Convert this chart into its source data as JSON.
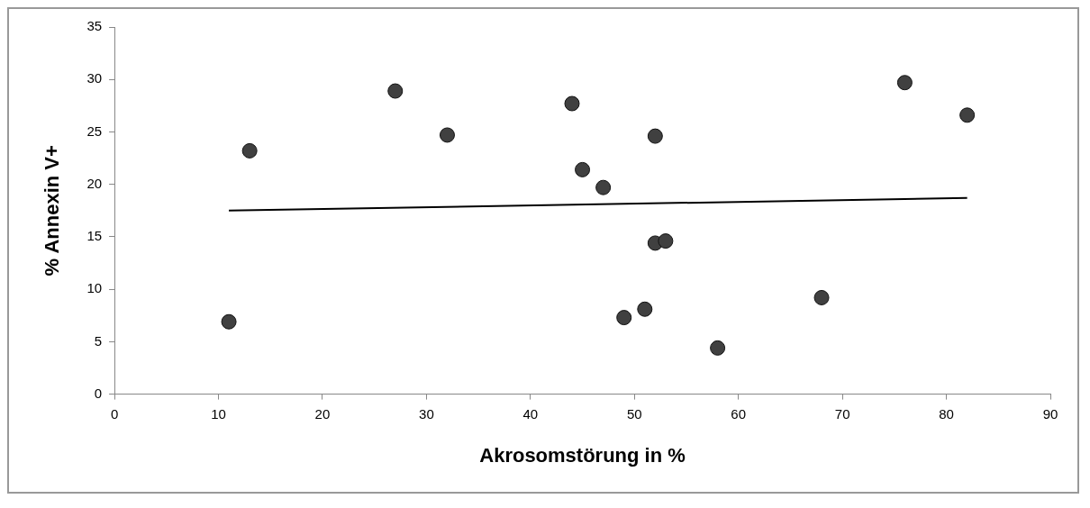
{
  "chart_data": {
    "type": "scatter",
    "xlabel": "Akrosomstörung in %",
    "ylabel": "% Annexin V+",
    "xlim": [
      0,
      90
    ],
    "xticks": [
      0,
      10,
      20,
      30,
      40,
      50,
      60,
      70,
      80,
      90
    ],
    "ylim": [
      0,
      35
    ],
    "yticks": [
      0,
      5,
      10,
      15,
      20,
      25,
      30,
      35
    ],
    "grid": false,
    "legend": false,
    "marker": "circle",
    "series": [
      {
        "color": "#404040",
        "x": [
          11,
          13,
          27,
          32,
          44,
          45,
          47,
          49,
          51,
          52,
          52,
          53,
          58,
          68,
          76,
          82
        ],
        "values": [
          6.9,
          23.2,
          28.9,
          24.7,
          27.7,
          21.4,
          19.7,
          7.3,
          8.1,
          24.6,
          14.4,
          14.6,
          4.4,
          9.2,
          29.7,
          26.6
        ]
      },
      {
        "type": "line",
        "color": "#000000",
        "marker": "none",
        "x": [
          11,
          82
        ],
        "values": [
          17.5,
          18.7
        ]
      }
    ]
  }
}
